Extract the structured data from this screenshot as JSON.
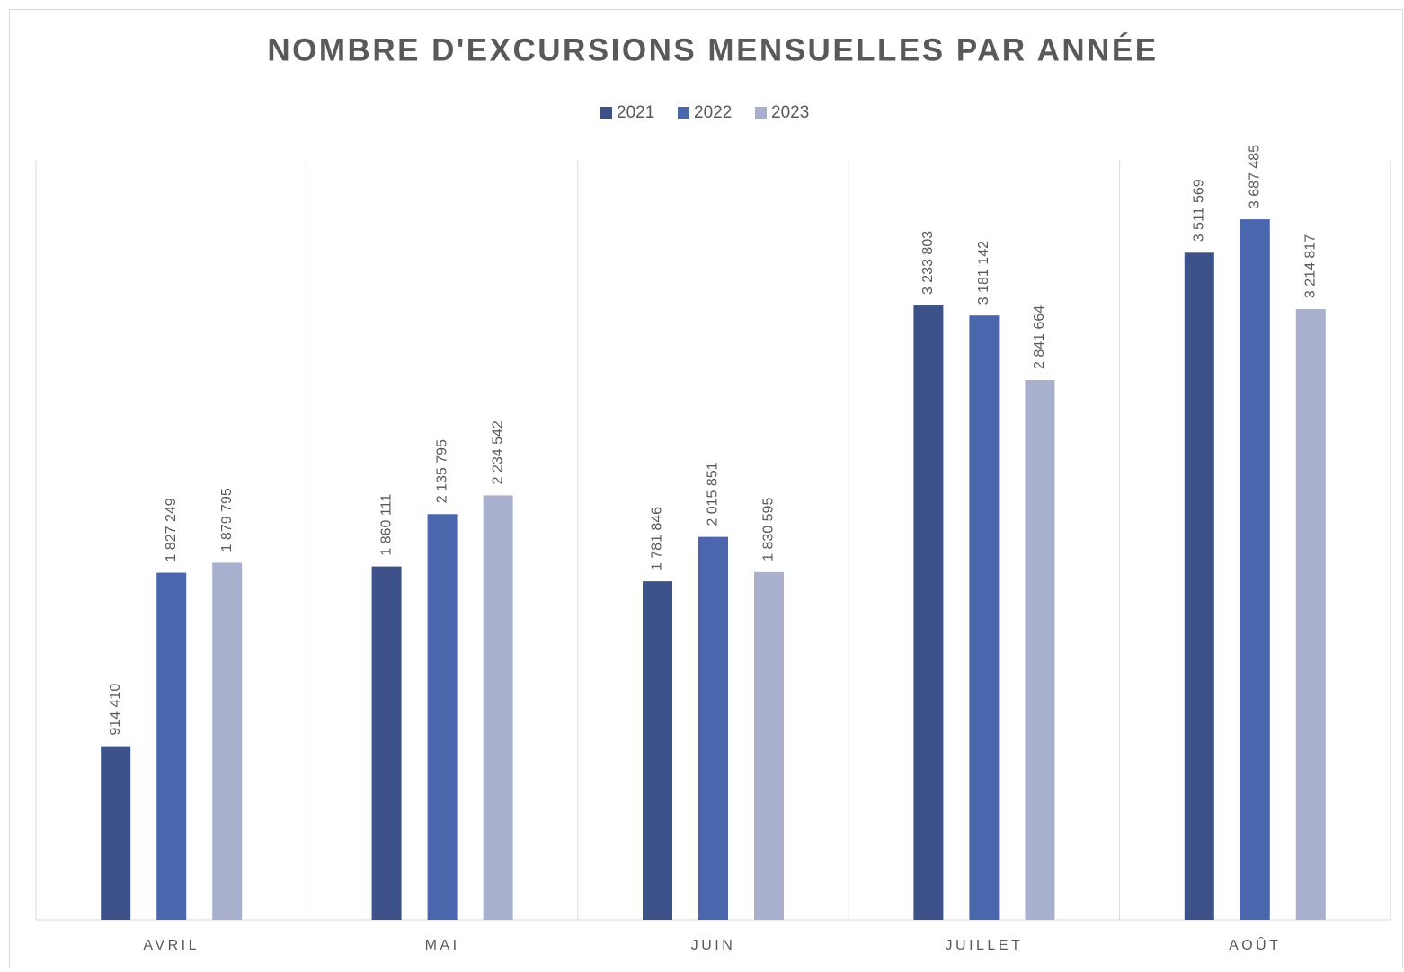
{
  "chart_data": {
    "type": "bar",
    "title": "NOMBRE D'EXCURSIONS MENSUELLES PAR ANNÉE",
    "categories": [
      "AVRIL",
      "MAI",
      "JUIN",
      "JUILLET",
      "AOÛT"
    ],
    "series": [
      {
        "name": "2021",
        "color": "#3c5289",
        "values": [
          914410,
          1860111,
          1781846,
          3233803,
          3511569
        ],
        "value_labels": [
          "914 410",
          "1 860 111",
          "1 781 846",
          "3 233 803",
          "3 511 569"
        ]
      },
      {
        "name": "2022",
        "color": "#4a67ae",
        "values": [
          1827249,
          2135795,
          2015851,
          3181142,
          3687485
        ],
        "value_labels": [
          "1 827 249",
          "2 135 795",
          "2 015 851",
          "3 181 142",
          "3 687 485"
        ]
      },
      {
        "name": "2023",
        "color": "#a9b0cd",
        "values": [
          1879795,
          2234542,
          1830595,
          2841664,
          3214817
        ],
        "value_labels": [
          "1 879 795",
          "2 234 542",
          "1 830 595",
          "2 841 664",
          "3 214 817"
        ]
      }
    ],
    "ylim": [
      0,
      4000000
    ],
    "legend": "top"
  }
}
